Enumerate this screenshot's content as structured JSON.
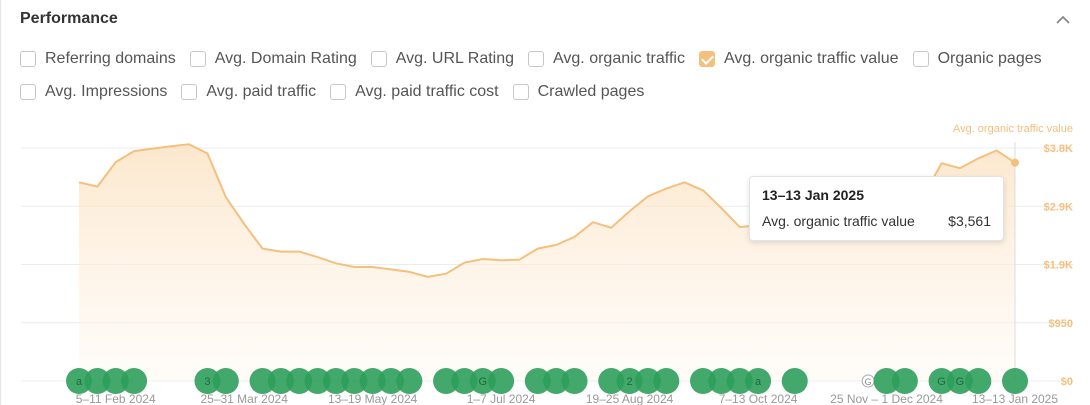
{
  "panel": {
    "title": "Performance"
  },
  "checkboxes": [
    {
      "label": "Referring domains",
      "checked": false
    },
    {
      "label": "Avg. Domain Rating",
      "checked": false
    },
    {
      "label": "Avg. URL Rating",
      "checked": false
    },
    {
      "label": "Avg. organic traffic",
      "checked": false
    },
    {
      "label": "Avg. organic traffic value",
      "checked": true
    },
    {
      "label": "Organic pages",
      "checked": false
    },
    {
      "label": "Avg. Impressions",
      "checked": false
    },
    {
      "label": "Avg. paid traffic",
      "checked": false
    },
    {
      "label": "Avg. paid traffic cost",
      "checked": false
    },
    {
      "label": "Crawled pages",
      "checked": false
    }
  ],
  "tooltip": {
    "date": "13–13 Jan 2025",
    "label": "Avg. organic traffic value",
    "value": "$3,561"
  },
  "colors": {
    "series": "#f4c07e",
    "marker": "#2e9e5b",
    "grid": "#ececec",
    "axis": "#f4c07e",
    "xlabel": "#999999"
  },
  "chart_data": {
    "type": "area",
    "series_name": "Avg. organic traffic value",
    "y_ticks": [
      "$0",
      "$950",
      "$1.9K",
      "$2.9K",
      "$3.8K"
    ],
    "ylim": [
      0,
      3800
    ],
    "x_tick_labels": [
      "5–11 Feb 2024",
      "25–31 Mar 2024",
      "13–19 May 2024",
      "1–7 Jul 2024",
      "19–25 Aug 2024",
      "7–13 Oct 2024",
      "25 Nov – 1 Dec 2024",
      "13–13 Jan 2025"
    ],
    "x_tick_index": [
      2,
      9,
      16,
      23,
      30,
      37,
      44,
      51
    ],
    "values": [
      3240,
      3170,
      3570,
      3750,
      3790,
      3830,
      3860,
      3710,
      3000,
      2560,
      2160,
      2110,
      2110,
      2020,
      1920,
      1860,
      1860,
      1820,
      1780,
      1700,
      1750,
      1930,
      1990,
      1970,
      1980,
      2160,
      2220,
      2350,
      2590,
      2500,
      2770,
      3010,
      3140,
      3240,
      3110,
      2820,
      2510,
      2540,
      2590,
      2500,
      2440,
      2500,
      2560,
      2590,
      2660,
      2900,
      3010,
      3550,
      3470,
      3630,
      3760,
      3561
    ],
    "markers": [
      {
        "i": 0,
        "label": "a"
      },
      {
        "i": 1,
        "label": ""
      },
      {
        "i": 2,
        "label": ""
      },
      {
        "i": 3,
        "label": ""
      },
      {
        "i": 7,
        "label": "3"
      },
      {
        "i": 8,
        "label": ""
      },
      {
        "i": 10,
        "label": ""
      },
      {
        "i": 11,
        "label": ""
      },
      {
        "i": 12,
        "label": ""
      },
      {
        "i": 13,
        "label": ""
      },
      {
        "i": 14,
        "label": ""
      },
      {
        "i": 15,
        "label": ""
      },
      {
        "i": 16,
        "label": ""
      },
      {
        "i": 17,
        "label": ""
      },
      {
        "i": 18,
        "label": ""
      },
      {
        "i": 20,
        "label": ""
      },
      {
        "i": 21,
        "label": ""
      },
      {
        "i": 22,
        "label": "G"
      },
      {
        "i": 23,
        "label": ""
      },
      {
        "i": 25,
        "label": ""
      },
      {
        "i": 26,
        "label": ""
      },
      {
        "i": 27,
        "label": ""
      },
      {
        "i": 29,
        "label": ""
      },
      {
        "i": 30,
        "label": "2"
      },
      {
        "i": 31,
        "label": ""
      },
      {
        "i": 32,
        "label": ""
      },
      {
        "i": 34,
        "label": ""
      },
      {
        "i": 35,
        "label": ""
      },
      {
        "i": 36,
        "label": ""
      },
      {
        "i": 37,
        "label": "a"
      },
      {
        "i": 39,
        "label": ""
      },
      {
        "i": 43,
        "label": "G",
        "small": true
      },
      {
        "i": 44,
        "label": ""
      },
      {
        "i": 45,
        "label": ""
      },
      {
        "i": 47,
        "label": "G"
      },
      {
        "i": 48,
        "label": "G"
      },
      {
        "i": 49,
        "label": ""
      },
      {
        "i": 51,
        "label": ""
      }
    ]
  }
}
